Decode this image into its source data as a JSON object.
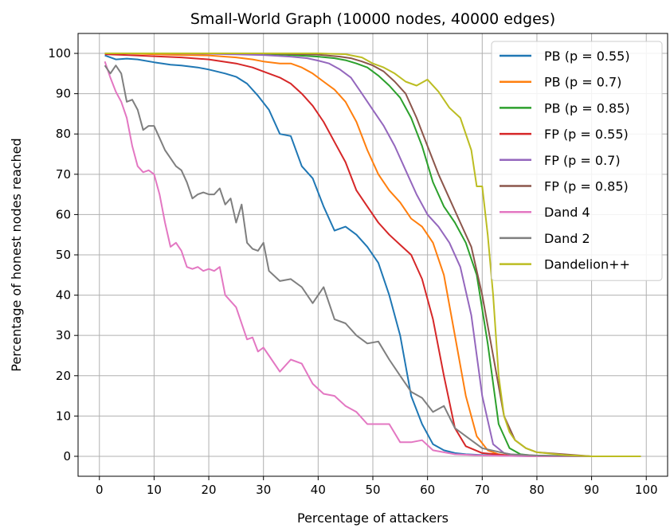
{
  "chart_data": {
    "type": "line",
    "title": "Small-World Graph (10000 nodes, 40000 edges)",
    "xlabel": "Percentage of attackers",
    "ylabel": "Percentage of honest nodes reached",
    "xlim": [
      -3.9,
      103.9
    ],
    "ylim": [
      -4.95,
      104.95
    ],
    "xticks": [
      0,
      10,
      20,
      30,
      40,
      50,
      60,
      70,
      80,
      90,
      100
    ],
    "yticks": [
      0,
      10,
      20,
      30,
      40,
      50,
      60,
      70,
      80,
      90,
      100
    ],
    "grid": true,
    "legend_position": "top-right",
    "series": [
      {
        "name": "PB (p = 0.55)",
        "color": "#1f77b4",
        "x": [
          1,
          3,
          5,
          7,
          10,
          13,
          15,
          18,
          20,
          23,
          25,
          27,
          29,
          31,
          33,
          35,
          37,
          39,
          41,
          43,
          45,
          47,
          49,
          51,
          53,
          55,
          57,
          59,
          61,
          63,
          65,
          67,
          70,
          75,
          80,
          90,
          99
        ],
        "y": [
          99.5,
          98.5,
          98.7,
          98.5,
          97.8,
          97.2,
          97.0,
          96.5,
          96.0,
          95.0,
          94.2,
          92.5,
          89.5,
          86.0,
          80.0,
          79.5,
          72.0,
          69.0,
          62.0,
          56.0,
          57.0,
          55.0,
          52.0,
          48.0,
          40.0,
          30.0,
          15.0,
          8.0,
          3.0,
          1.5,
          0.8,
          0.5,
          0.3,
          0.1,
          0,
          0,
          0
        ]
      },
      {
        "name": "PB (p = 0.7)",
        "color": "#ff7f0e",
        "x": [
          1,
          5,
          10,
          15,
          20,
          25,
          28,
          30,
          33,
          35,
          37,
          39,
          41,
          43,
          45,
          47,
          49,
          51,
          53,
          55,
          57,
          59,
          61,
          63,
          65,
          67,
          69,
          71,
          73,
          75,
          80,
          90,
          99
        ],
        "y": [
          100,
          100,
          99.8,
          99.6,
          99.5,
          99.0,
          98.5,
          98.0,
          97.5,
          97.5,
          96.5,
          95.0,
          93.0,
          91.0,
          88.0,
          83.0,
          76.0,
          70.0,
          66.0,
          63.0,
          59.0,
          57.0,
          53.0,
          45.0,
          30.0,
          15.0,
          5.0,
          1.5,
          0.5,
          0.2,
          0,
          0,
          0
        ]
      },
      {
        "name": "PB (p = 0.85)",
        "color": "#2ca02c",
        "x": [
          1,
          10,
          20,
          30,
          35,
          40,
          43,
          45,
          47,
          49,
          51,
          53,
          55,
          57,
          59,
          61,
          63,
          65,
          67,
          69,
          71,
          73,
          75,
          77,
          80,
          90,
          99
        ],
        "y": [
          100,
          100,
          100,
          99.9,
          99.6,
          99.2,
          98.8,
          98.3,
          97.5,
          96.5,
          94.5,
          92.0,
          89.0,
          84.0,
          77.0,
          68.0,
          62.0,
          58.0,
          53.0,
          45.0,
          28.0,
          8.0,
          2.0,
          0.5,
          0.1,
          0,
          0
        ]
      },
      {
        "name": "FP (p = 0.55)",
        "color": "#d62728",
        "x": [
          1,
          5,
          10,
          15,
          20,
          25,
          28,
          30,
          33,
          35,
          37,
          39,
          41,
          43,
          45,
          47,
          49,
          51,
          53,
          55,
          57,
          59,
          61,
          63,
          65,
          67,
          70,
          75,
          80,
          90,
          99
        ],
        "y": [
          99.8,
          99.6,
          99.3,
          99.0,
          98.5,
          97.5,
          96.5,
          95.5,
          94.0,
          92.5,
          90.0,
          87.0,
          83.0,
          78.0,
          73.0,
          66.0,
          62.0,
          58.0,
          55.0,
          52.5,
          50.0,
          44.0,
          34.0,
          20.0,
          7.0,
          2.5,
          0.8,
          0.2,
          0,
          0,
          0
        ]
      },
      {
        "name": "FP (p = 0.7)",
        "color": "#9467bd",
        "x": [
          1,
          10,
          20,
          30,
          35,
          38,
          40,
          42,
          44,
          46,
          48,
          50,
          52,
          54,
          56,
          58,
          60,
          62,
          64,
          66,
          68,
          70,
          72,
          74,
          76,
          80,
          90,
          99
        ],
        "y": [
          100,
          100,
          99.9,
          99.6,
          99.2,
          98.8,
          98.2,
          97.5,
          96.0,
          94.0,
          90.0,
          86.0,
          82.0,
          77.0,
          71.0,
          65.0,
          60.0,
          57.0,
          53.0,
          47.0,
          35.0,
          15.0,
          3.0,
          0.8,
          0.3,
          0,
          0,
          0
        ]
      },
      {
        "name": "FP (p = 0.85)",
        "color": "#8c564b",
        "x": [
          1,
          10,
          20,
          30,
          40,
          44,
          46,
          48,
          50,
          52,
          54,
          56,
          58,
          60,
          62,
          64,
          66,
          68,
          70,
          72,
          74,
          76,
          78,
          80,
          90,
          99
        ],
        "y": [
          100,
          100,
          100,
          100,
          99.7,
          99.2,
          98.8,
          98.0,
          97.0,
          95.5,
          93.0,
          90.0,
          84.0,
          77.0,
          70.0,
          64.0,
          58.0,
          52.0,
          40.0,
          25.0,
          10.0,
          4.0,
          2.0,
          1.0,
          0,
          0
        ]
      },
      {
        "name": "Dand 4",
        "color": "#e377c2",
        "x": [
          1,
          2,
          3,
          4,
          5,
          6,
          7,
          8,
          9,
          10,
          11,
          12,
          13,
          14,
          15,
          16,
          17,
          18,
          19,
          20,
          21,
          22,
          23,
          25,
          27,
          28,
          29,
          30,
          31,
          33,
          35,
          37,
          39,
          41,
          43,
          45,
          47,
          49,
          51,
          53,
          55,
          57,
          59,
          61,
          63,
          65,
          70,
          80,
          90,
          99
        ],
        "y": [
          98.0,
          94.0,
          90.5,
          88.0,
          84.0,
          77.0,
          72.0,
          70.5,
          71.0,
          70.0,
          65.0,
          58.0,
          52.0,
          53.0,
          51.0,
          47.0,
          46.5,
          47.0,
          46.0,
          46.5,
          46.0,
          47.0,
          40.0,
          37.0,
          29.0,
          29.5,
          26.0,
          27.0,
          25.0,
          21.0,
          24.0,
          23.0,
          18.0,
          15.5,
          15.0,
          12.5,
          11.0,
          8.0,
          8.0,
          8.0,
          3.5,
          3.5,
          4.0,
          1.5,
          1.0,
          0.5,
          0.2,
          0,
          0,
          0
        ]
      },
      {
        "name": "Dand 2",
        "color": "#7f7f7f",
        "x": [
          1,
          2,
          3,
          4,
          5,
          6,
          7,
          8,
          9,
          10,
          11,
          12,
          13,
          14,
          15,
          16,
          17,
          18,
          19,
          20,
          21,
          22,
          23,
          24,
          25,
          26,
          27,
          28,
          29,
          30,
          31,
          33,
          35,
          37,
          39,
          41,
          43,
          45,
          47,
          49,
          51,
          53,
          55,
          57,
          59,
          61,
          63,
          65,
          67,
          70,
          75,
          80,
          90,
          99
        ],
        "y": [
          97.0,
          95.0,
          97.0,
          95.0,
          88.0,
          88.5,
          86.0,
          81.0,
          82.0,
          82.0,
          79.0,
          76.0,
          74.0,
          72.0,
          71.0,
          68.0,
          64.0,
          65.0,
          65.5,
          65.0,
          65.0,
          66.5,
          62.5,
          64.0,
          58.0,
          62.5,
          53.0,
          51.5,
          51.0,
          53.0,
          46.0,
          43.5,
          44.0,
          42.0,
          38.0,
          42.0,
          34.0,
          33.0,
          30.0,
          28.0,
          28.5,
          24.0,
          20.0,
          16.0,
          14.5,
          11.0,
          12.5,
          7.0,
          5.0,
          2.0,
          0.5,
          0.2,
          0,
          0
        ]
      },
      {
        "name": "Dandelion++",
        "color": "#bcbd22",
        "x": [
          1,
          10,
          20,
          30,
          40,
          45,
          48,
          50,
          52,
          54,
          56,
          58,
          60,
          62,
          64,
          66,
          68,
          69,
          70,
          71,
          72,
          73,
          74,
          75,
          76,
          78,
          80,
          85,
          90,
          99
        ],
        "y": [
          100,
          100,
          100,
          100,
          100,
          99.8,
          99.0,
          97.5,
          96.5,
          95.0,
          93.0,
          92.0,
          93.5,
          90.5,
          86.5,
          84.0,
          76.0,
          67.0,
          67.0,
          55.0,
          40.0,
          20.0,
          10.0,
          6.0,
          4.0,
          2.0,
          1.0,
          0.3,
          0,
          0
        ]
      }
    ]
  }
}
